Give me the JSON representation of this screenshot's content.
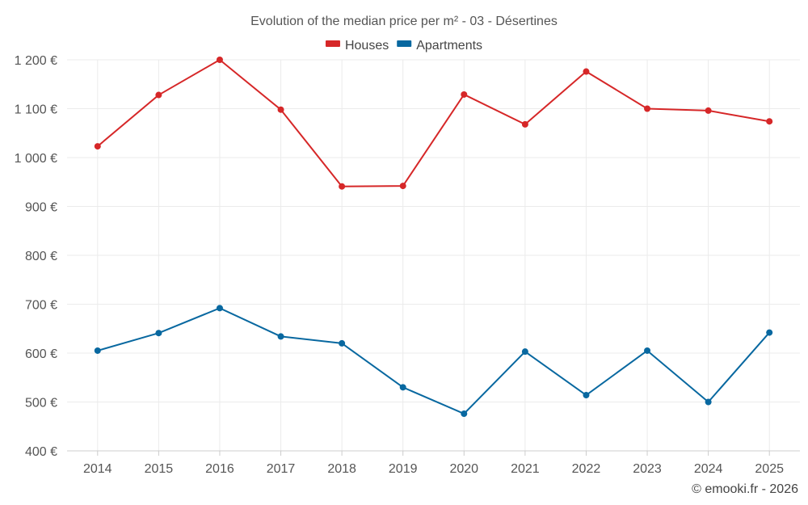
{
  "chart_data": {
    "type": "line",
    "title": "Evolution of the median price per m² - 03 - Désertines",
    "categories": [
      "2014",
      "2015",
      "2016",
      "2017",
      "2018",
      "2019",
      "2020",
      "2021",
      "2022",
      "2023",
      "2024",
      "2025"
    ],
    "series": [
      {
        "name": "Houses",
        "color": "#d62728",
        "values": [
          1023,
          1128,
          1200,
          1098,
          941,
          942,
          1129,
          1068,
          1176,
          1100,
          1096,
          1074
        ]
      },
      {
        "name": "Apartments",
        "color": "#0868a0",
        "values": [
          605,
          641,
          692,
          634,
          620,
          530,
          476,
          603,
          514,
          605,
          500,
          642
        ]
      }
    ],
    "ylim": [
      400,
      1200
    ],
    "yticks": [
      400,
      500,
      600,
      700,
      800,
      900,
      1000,
      1100,
      1200
    ],
    "ytick_labels": [
      "400 €",
      "500 €",
      "600 €",
      "700 €",
      "800 €",
      "900 €",
      "1 000 €",
      "1 100 €",
      "1 200 €"
    ],
    "xlabel": "",
    "ylabel": "",
    "legend_position": "top-center",
    "grid": true
  },
  "credit": "© emooki.fr - 2026"
}
